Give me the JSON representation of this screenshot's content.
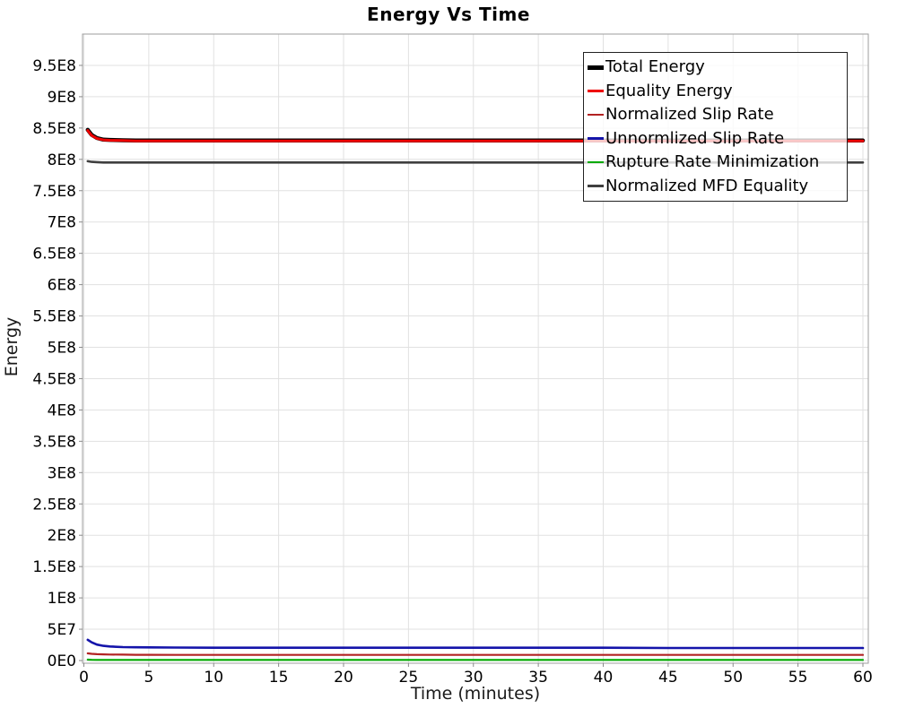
{
  "page": {
    "background": "#ffffff"
  },
  "chart_data": {
    "type": "line",
    "title": "Energy Vs Time",
    "xlabel": "Time (minutes)",
    "ylabel": "Energy",
    "xlim": [
      0,
      60
    ],
    "ylim": [
      0,
      1000000000
    ],
    "grid": true,
    "legend_position": "top-right-inside",
    "x_ticks": {
      "values": [
        0,
        5,
        10,
        15,
        20,
        25,
        30,
        35,
        40,
        45,
        50,
        55,
        60
      ],
      "labels": [
        "0",
        "5",
        "10",
        "15",
        "20",
        "25",
        "30",
        "35",
        "40",
        "45",
        "50",
        "55",
        "60"
      ]
    },
    "y_ticks": {
      "values": [
        0,
        50000000,
        100000000,
        150000000,
        200000000,
        250000000,
        300000000,
        350000000,
        400000000,
        450000000,
        500000000,
        550000000,
        600000000,
        650000000,
        700000000,
        750000000,
        800000000,
        850000000,
        900000000,
        950000000
      ],
      "labels": [
        "0E0",
        "5E7",
        "1E8",
        "1.5E8",
        "2E8",
        "2.5E8",
        "3E8",
        "3.5E8",
        "4E8",
        "4.5E8",
        "5E8",
        "5.5E8",
        "6E8",
        "6.5E8",
        "7E8",
        "7.5E8",
        "8E8",
        "8.5E8",
        "9E8",
        "9.5E8"
      ]
    },
    "x": [
      0.3,
      0.6,
      1,
      1.5,
      2,
      3,
      4,
      5,
      7,
      10,
      15,
      20,
      25,
      30,
      35,
      40,
      45,
      50,
      55,
      60
    ],
    "series": [
      {
        "name": "Total Energy",
        "color": "#000000",
        "line_width": 4.5,
        "values": [
          847000000,
          839000000,
          834000000,
          831500000,
          831000000,
          830500000,
          830000000,
          830000000,
          830000000,
          830000000,
          830000000,
          830000000,
          830000000,
          830000000,
          830000000,
          830000000,
          830000000,
          830000000,
          830000000,
          830000000
        ]
      },
      {
        "name": "Equality Energy",
        "color": "#EE0000",
        "line_width": 3,
        "values": [
          846000000,
          838000000,
          833500000,
          831000000,
          830500000,
          830000000,
          829500000,
          829500000,
          829500000,
          829500000,
          829500000,
          829500000,
          829500000,
          829500000,
          829500000,
          829500000,
          829500000,
          829500000,
          829500000,
          829500000
        ]
      },
      {
        "name": "Normalized Slip Rate",
        "color": "#B22222",
        "line_width": 2.2,
        "values": [
          11500000,
          10800000,
          10200000,
          9800000,
          9600000,
          9400000,
          9200000,
          9100000,
          9000000,
          9000000,
          9000000,
          9000000,
          9000000,
          9000000,
          9000000,
          9000000,
          9000000,
          9000000,
          9000000,
          9000000
        ]
      },
      {
        "name": "Unnormlized Slip Rate",
        "color": "#1414AA",
        "line_width": 2.6,
        "values": [
          33000000,
          29000000,
          25500000,
          23500000,
          22500000,
          21500000,
          21200000,
          21000000,
          20800000,
          20500000,
          20500000,
          20500000,
          20500000,
          20500000,
          20500000,
          20500000,
          20000000,
          20000000,
          20000000,
          20000000
        ]
      },
      {
        "name": "Rupture Rate Minimization",
        "color": "#00AA00",
        "line_width": 2.2,
        "values": [
          1500000,
          1200000,
          1000000,
          1000000,
          1000000,
          1000000,
          1000000,
          1000000,
          1000000,
          1000000,
          1000000,
          1000000,
          1000000,
          1000000,
          1000000,
          1000000,
          1000000,
          1000000,
          1000000,
          1000000
        ]
      },
      {
        "name": "Normalized MFD Equality",
        "color": "#3F3F3F",
        "line_width": 2.6,
        "values": [
          797000000,
          796000000,
          795500000,
          795000000,
          795000000,
          795000000,
          795000000,
          795000000,
          795000000,
          795000000,
          795000000,
          795000000,
          795000000,
          795000000,
          795000000,
          795000000,
          795000000,
          795000000,
          795000000,
          795000000
        ]
      }
    ],
    "style": {
      "grid_color": "#E1E1E1",
      "plot_border_color": "#9E9E9E",
      "tick_mark_color": "#8A8A8A",
      "tick_label_color": "#000000",
      "legend_border_color": "#222222",
      "legend_background": "rgba(255,255,255,0.78)"
    }
  }
}
